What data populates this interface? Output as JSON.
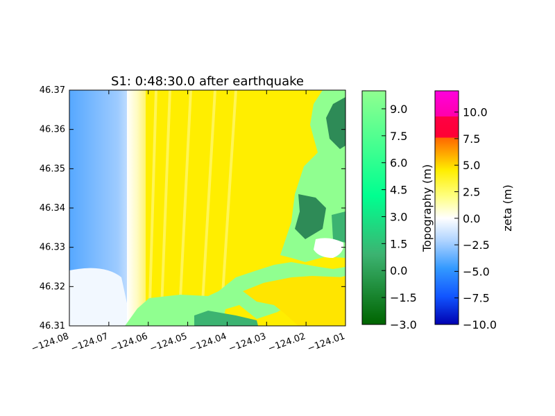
{
  "chart_data": {
    "type": "heatmap",
    "title": "S1: 0:48:30.0 after earthquake",
    "x_range": [
      -124.08,
      -124.01
    ],
    "y_range": [
      46.31,
      46.37
    ],
    "x_ticks": [
      -124.08,
      -124.07,
      -124.06,
      -124.05,
      -124.04,
      -124.03,
      -124.02,
      -124.01
    ],
    "x_tick_labels": [
      "−124.08",
      "−124.07",
      "−124.06",
      "−124.05",
      "−124.04",
      "−124.03",
      "−124.02",
      "−124.01"
    ],
    "y_ticks": [
      46.31,
      46.32,
      46.33,
      46.34,
      46.35,
      46.36,
      46.37
    ],
    "y_tick_labels": [
      "46.31",
      "46.32",
      "46.33",
      "46.34",
      "46.35",
      "46.36",
      "46.37"
    ],
    "colorbars": [
      {
        "label": "Topography (m)",
        "range": [
          -3.0,
          10.0
        ],
        "ticks": [
          -3.0,
          -1.5,
          0.0,
          1.5,
          3.0,
          4.5,
          6.0,
          7.5,
          9.0
        ],
        "tick_labels": [
          "−3.0",
          "−1.5",
          "0.0",
          "1.5",
          "3.0",
          "4.5",
          "6.0",
          "7.5",
          "9.0"
        ],
        "colors": [
          "#006400",
          "#3cb371",
          "#00ff90",
          "#90ff90"
        ]
      },
      {
        "label": "zeta (m)",
        "range": [
          -10.0,
          12.0
        ],
        "ticks": [
          -10.0,
          -7.5,
          -5.0,
          -2.5,
          0.0,
          2.5,
          5.0,
          7.5,
          10.0
        ],
        "tick_labels": [
          "−10.0",
          "−7.5",
          "−5.0",
          "−2.5",
          "0.0",
          "2.5",
          "5.0",
          "7.5",
          "10.0"
        ],
        "colors": [
          "#0000b0",
          "#3399ff",
          "#ffffff",
          "#ffff00",
          "#ff6600",
          "#ff0044",
          "#ff00cc"
        ]
      }
    ]
  }
}
